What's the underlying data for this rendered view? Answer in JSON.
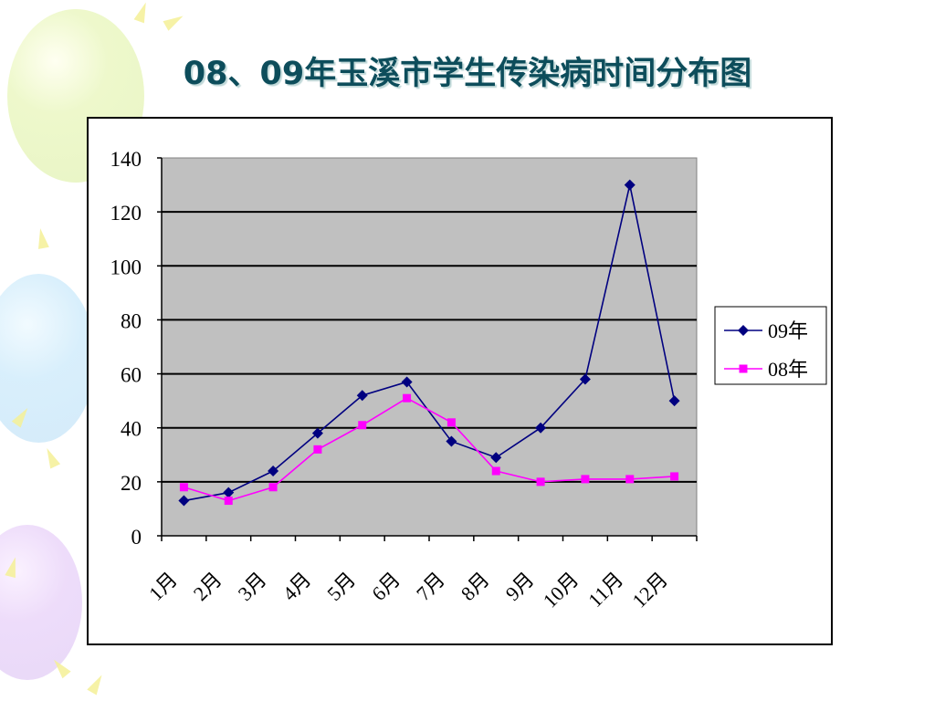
{
  "chart_data": {
    "type": "line",
    "title": "08、09年玉溪市学生传染病时间分布图",
    "categories": [
      "1月",
      "2月",
      "3月",
      "4月",
      "5月",
      "6月",
      "7月",
      "8月",
      "9月",
      "10月",
      "11月",
      "12月"
    ],
    "series": [
      {
        "name": "09年",
        "values": [
          13,
          16,
          24,
          38,
          52,
          57,
          35,
          29,
          40,
          58,
          130,
          50
        ],
        "color": "#000080",
        "marker": "diamond"
      },
      {
        "name": "08年",
        "values": [
          18,
          13,
          18,
          32,
          41,
          51,
          42,
          24,
          20,
          21,
          21,
          22
        ],
        "color": "#FF00FF",
        "marker": "square"
      }
    ],
    "ylim": [
      0,
      140
    ],
    "yticks": [
      0,
      20,
      40,
      60,
      80,
      100,
      120,
      140
    ],
    "grid": true,
    "legend": "right",
    "plot_background": "#C0C0C0"
  }
}
